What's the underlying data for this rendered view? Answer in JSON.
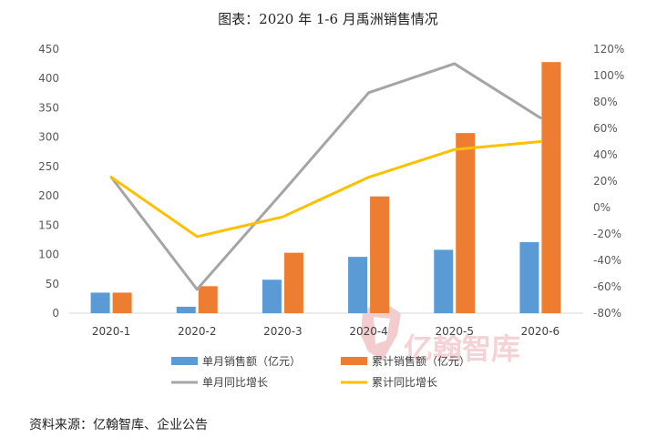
{
  "colors": {
    "monthly_sales": "#5b9bd5",
    "cumulative_sales": "#ed7d31",
    "monthly_yoy": "#a5a5a5",
    "cumulative_yoy": "#ffc000",
    "watermark": "#e8a3a8"
  },
  "watermark": {
    "text": "亿翰智库"
  },
  "source": "资料来源：亿翰智库、企业公告",
  "chart_data": {
    "type": "bar",
    "title": "图表：2020 年 1-6 月禹洲销售情况",
    "categories": [
      "2020-1",
      "2020-2",
      "2020-3",
      "2020-4",
      "2020-5",
      "2020-6"
    ],
    "y_left": {
      "ylim": [
        0,
        450
      ],
      "ticks": [
        "0",
        "50",
        "100",
        "150",
        "200",
        "250",
        "300",
        "350",
        "400",
        "450"
      ]
    },
    "y_right": {
      "ylim": [
        -80,
        120
      ],
      "ticks": [
        "-80%",
        "-60%",
        "-40%",
        "-20%",
        "0%",
        "20%",
        "40%",
        "60%",
        "80%",
        "100%",
        "120%"
      ]
    },
    "grid": false,
    "legend_position": "bottom",
    "series": [
      {
        "name": "单月销售额（亿元）",
        "type": "bar",
        "axis": "left",
        "values": [
          35,
          11,
          57,
          96,
          108,
          121
        ]
      },
      {
        "name": "累计销售额（亿元）",
        "type": "bar",
        "axis": "left",
        "values": [
          35,
          46,
          103,
          199,
          307,
          428
        ]
      },
      {
        "name": "单月同比增长",
        "type": "line",
        "axis": "right",
        "values": [
          23,
          -62,
          12,
          87,
          109,
          68
        ]
      },
      {
        "name": "累计同比增长",
        "type": "line",
        "axis": "right",
        "values": [
          23,
          -22,
          -7,
          23,
          44,
          50
        ]
      }
    ]
  }
}
